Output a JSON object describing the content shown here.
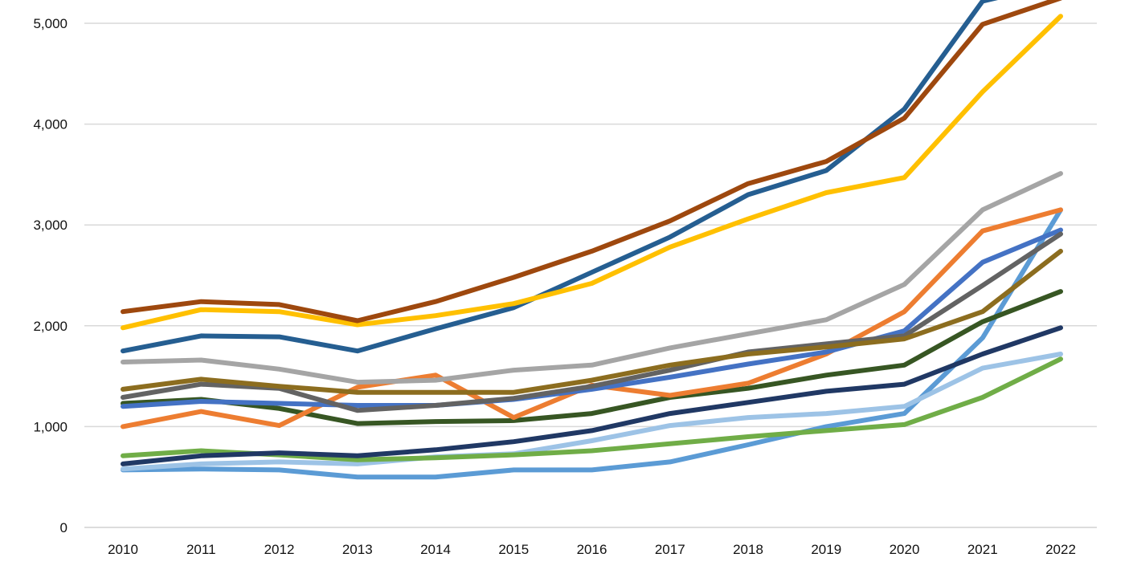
{
  "chart_data": {
    "type": "line",
    "title": "",
    "xlabel": "",
    "ylabel": "",
    "x": [
      "2010",
      "2011",
      "2012",
      "2013",
      "2014",
      "2015",
      "2016",
      "2017",
      "2018",
      "2019",
      "2020",
      "2021",
      "2022"
    ],
    "ylim": [
      0,
      5200
    ],
    "y_ticks": [
      0,
      1000,
      2000,
      3000,
      4000,
      5000
    ],
    "y_tick_labels": [
      "0",
      "1,000",
      "2,000",
      "3,000",
      "4,000",
      "5,000"
    ],
    "grid": true,
    "legend": "none",
    "series": [
      {
        "color": "#5B9BD5",
        "values": [
          570,
          580,
          570,
          500,
          500,
          570,
          570,
          650,
          820,
          1000,
          1130,
          1880,
          3150
        ]
      },
      {
        "color": "#9DC3E6",
        "values": [
          580,
          630,
          650,
          630,
          700,
          730,
          860,
          1010,
          1090,
          1130,
          1200,
          1580,
          1720
        ]
      },
      {
        "color": "#70AD47",
        "values": [
          710,
          760,
          720,
          670,
          690,
          720,
          760,
          830,
          900,
          960,
          1020,
          1290,
          1670
        ]
      },
      {
        "color": "#203864",
        "values": [
          630,
          710,
          740,
          710,
          770,
          850,
          960,
          1130,
          1240,
          1350,
          1420,
          1720,
          1980
        ]
      },
      {
        "color": "#375623",
        "values": [
          1230,
          1270,
          1180,
          1030,
          1050,
          1060,
          1130,
          1290,
          1380,
          1510,
          1610,
          2040,
          2340
        ]
      },
      {
        "color": "#ED7D31",
        "values": [
          1000,
          1150,
          1010,
          1390,
          1510,
          1090,
          1410,
          1310,
          1430,
          1720,
          2140,
          2940,
          3150
        ]
      },
      {
        "color": "#4472C4",
        "values": [
          1200,
          1250,
          1230,
          1210,
          1210,
          1270,
          1370,
          1490,
          1620,
          1740,
          1950,
          2630,
          2950
        ]
      },
      {
        "color": "#636363",
        "values": [
          1290,
          1420,
          1380,
          1160,
          1210,
          1280,
          1400,
          1560,
          1740,
          1820,
          1900,
          2400,
          2910
        ]
      },
      {
        "color": "#8C6D1F",
        "values": [
          1370,
          1470,
          1400,
          1340,
          1340,
          1340,
          1460,
          1610,
          1720,
          1790,
          1870,
          2140,
          2740
        ]
      },
      {
        "color": "#A5A5A5",
        "values": [
          1640,
          1660,
          1570,
          1440,
          1460,
          1560,
          1610,
          1780,
          1920,
          2060,
          2410,
          3150,
          3510
        ]
      },
      {
        "color": "#255E91",
        "values": [
          1750,
          1900,
          1890,
          1750,
          1970,
          2180,
          2530,
          2880,
          3300,
          3540,
          4150,
          5220,
          5400
        ]
      },
      {
        "color": "#FFC000",
        "values": [
          1980,
          2160,
          2140,
          2010,
          2100,
          2220,
          2420,
          2780,
          3060,
          3320,
          3470,
          4320,
          5070
        ]
      },
      {
        "color": "#9E480E",
        "values": [
          2140,
          2240,
          2210,
          2050,
          2240,
          2480,
          2740,
          3040,
          3410,
          3630,
          4060,
          4990,
          5250
        ]
      }
    ]
  }
}
